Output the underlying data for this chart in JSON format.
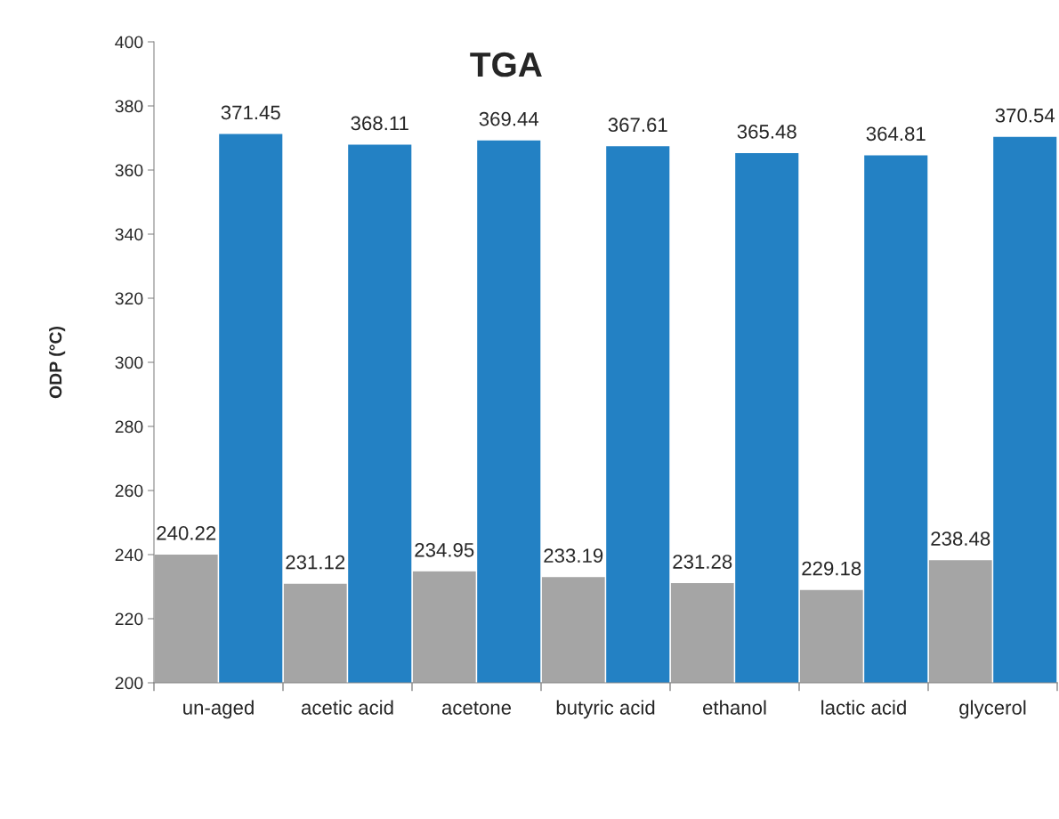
{
  "chart_data": {
    "type": "bar",
    "title": "TGA",
    "ylabel": "ODP (°C)",
    "categories": [
      "un-aged",
      "acetic acid",
      "acetone",
      "butyric acid",
      "ethanol",
      "lactic acid",
      "glycerol"
    ],
    "series": [
      {
        "color": "#a5a5a5",
        "values": [
          240.22,
          231.12,
          234.95,
          233.19,
          231.28,
          229.18,
          238.48
        ]
      },
      {
        "color": "#2381c4",
        "values": [
          371.45,
          368.11,
          369.44,
          367.61,
          365.48,
          364.81,
          370.54
        ]
      }
    ],
    "ylim": [
      200,
      400
    ],
    "yticks": [
      200,
      220,
      240,
      260,
      280,
      300,
      320,
      340,
      360,
      380,
      400
    ],
    "data_labels": true,
    "grid": false,
    "legend": false
  }
}
